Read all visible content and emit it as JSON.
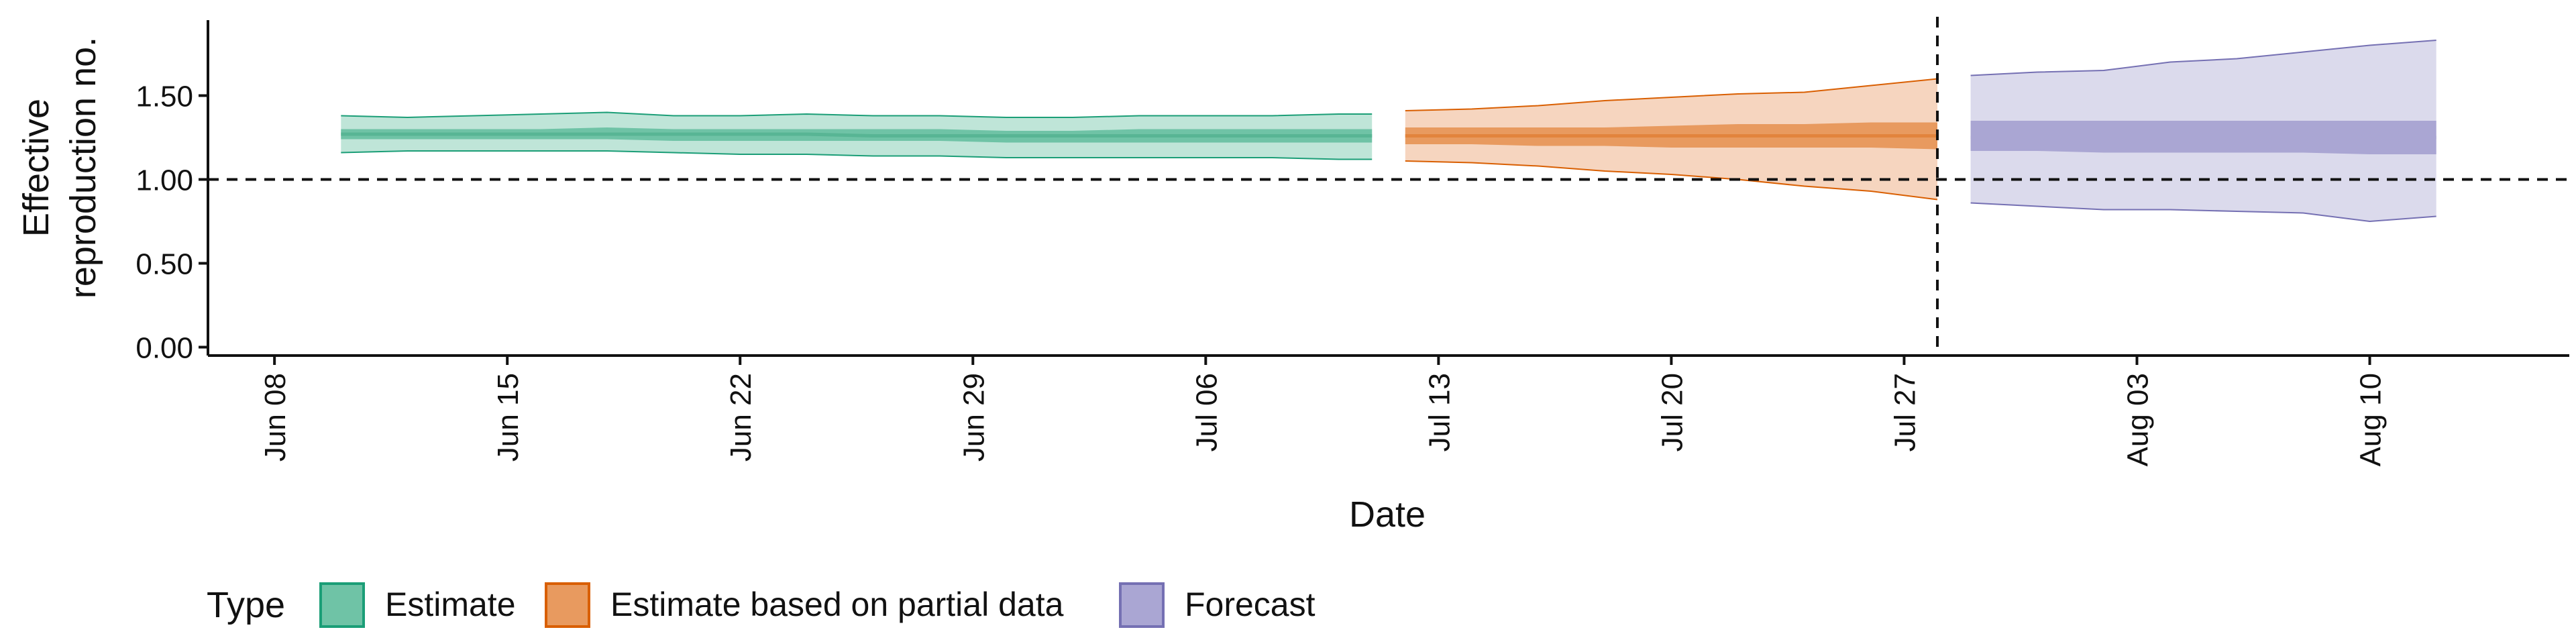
{
  "chart_data": {
    "type": "area",
    "title": "",
    "xlabel": "Date",
    "ylabel_lines": [
      "Effective",
      "reproduction no."
    ],
    "xlim": [
      "2020-06-06",
      "2020-08-16"
    ],
    "ylim": [
      -0.05,
      1.95
    ],
    "yticks": [
      {
        "value": 0.0,
        "label": "0.00"
      },
      {
        "value": 0.5,
        "label": "0.50"
      },
      {
        "value": 1.0,
        "label": "1.00"
      },
      {
        "value": 1.5,
        "label": "1.50"
      }
    ],
    "xticks": [
      {
        "date": "2020-06-08",
        "label": "Jun 08"
      },
      {
        "date": "2020-06-15",
        "label": "Jun 15"
      },
      {
        "date": "2020-06-22",
        "label": "Jun 22"
      },
      {
        "date": "2020-06-29",
        "label": "Jun 29"
      },
      {
        "date": "2020-07-06",
        "label": "Jul 06"
      },
      {
        "date": "2020-07-13",
        "label": "Jul 13"
      },
      {
        "date": "2020-07-20",
        "label": "Jul 20"
      },
      {
        "date": "2020-07-27",
        "label": "Jul 27"
      },
      {
        "date": "2020-08-03",
        "label": "Aug 03"
      },
      {
        "date": "2020-08-10",
        "label": "Aug 10"
      }
    ],
    "reference_lines": {
      "horizontal_y": 1.0,
      "vertical_date": "2020-07-28"
    },
    "legend": {
      "title": "Type",
      "position": "bottom-left"
    },
    "series": [
      {
        "name": "Estimate",
        "fill": "#1b9e77",
        "outer_fill_color": "#bfe5d8",
        "inner_fill_color": "#6fc3a6",
        "median_color": "#58b594",
        "x": [
          "2020-06-10",
          "2020-06-12",
          "2020-06-14",
          "2020-06-16",
          "2020-06-18",
          "2020-06-20",
          "2020-06-22",
          "2020-06-24",
          "2020-06-26",
          "2020-06-28",
          "2020-06-30",
          "2020-07-02",
          "2020-07-04",
          "2020-07-06",
          "2020-07-08",
          "2020-07-10",
          "2020-07-11"
        ],
        "upper_outer": [
          1.38,
          1.37,
          1.38,
          1.39,
          1.4,
          1.38,
          1.38,
          1.39,
          1.38,
          1.38,
          1.37,
          1.37,
          1.38,
          1.38,
          1.38,
          1.39,
          1.39
        ],
        "upper_inner": [
          1.3,
          1.3,
          1.3,
          1.3,
          1.31,
          1.3,
          1.3,
          1.3,
          1.3,
          1.3,
          1.29,
          1.29,
          1.3,
          1.3,
          1.3,
          1.3,
          1.3
        ],
        "median": [
          1.27,
          1.27,
          1.27,
          1.27,
          1.27,
          1.27,
          1.27,
          1.27,
          1.26,
          1.26,
          1.26,
          1.26,
          1.26,
          1.26,
          1.26,
          1.26,
          1.26
        ],
        "lower_inner": [
          1.24,
          1.24,
          1.24,
          1.24,
          1.24,
          1.23,
          1.23,
          1.23,
          1.23,
          1.23,
          1.22,
          1.22,
          1.22,
          1.22,
          1.22,
          1.22,
          1.22
        ],
        "lower_outer": [
          1.16,
          1.17,
          1.17,
          1.17,
          1.17,
          1.16,
          1.15,
          1.15,
          1.14,
          1.14,
          1.13,
          1.13,
          1.13,
          1.13,
          1.13,
          1.12,
          1.12
        ]
      },
      {
        "name": "Estimate based on partial data",
        "fill": "#d95f02",
        "outer_fill_color": "#f6d5bf",
        "inner_fill_color": "#e89a5f",
        "median_color": "#e2843d",
        "x": [
          "2020-07-12",
          "2020-07-14",
          "2020-07-16",
          "2020-07-18",
          "2020-07-20",
          "2020-07-22",
          "2020-07-24",
          "2020-07-26",
          "2020-07-28"
        ],
        "upper_outer": [
          1.41,
          1.42,
          1.44,
          1.47,
          1.49,
          1.51,
          1.52,
          1.56,
          1.6
        ],
        "upper_inner": [
          1.31,
          1.31,
          1.31,
          1.31,
          1.32,
          1.33,
          1.33,
          1.34,
          1.34
        ],
        "median": [
          1.26,
          1.26,
          1.26,
          1.26,
          1.26,
          1.26,
          1.26,
          1.26,
          1.26
        ],
        "lower_inner": [
          1.21,
          1.21,
          1.2,
          1.2,
          1.19,
          1.19,
          1.19,
          1.19,
          1.18
        ],
        "lower_outer": [
          1.11,
          1.1,
          1.08,
          1.05,
          1.03,
          1.0,
          0.96,
          0.93,
          0.88
        ]
      },
      {
        "name": "Forecast",
        "fill": "#7570b3",
        "outer_fill_color": "#dbdaec",
        "inner_fill_color": "#aaa6d3",
        "median_color": "#aaa6d3",
        "x": [
          "2020-07-29",
          "2020-07-31",
          "2020-08-02",
          "2020-08-04",
          "2020-08-06",
          "2020-08-08",
          "2020-08-10",
          "2020-08-12"
        ],
        "upper_outer": [
          1.62,
          1.64,
          1.65,
          1.7,
          1.72,
          1.76,
          1.8,
          1.83
        ],
        "upper_inner": [
          1.35,
          1.35,
          1.35,
          1.35,
          1.35,
          1.35,
          1.35,
          1.35
        ],
        "median": [
          1.25,
          1.25,
          1.25,
          1.25,
          1.25,
          1.25,
          1.25,
          1.25
        ],
        "lower_inner": [
          1.17,
          1.17,
          1.16,
          1.16,
          1.16,
          1.16,
          1.15,
          1.15
        ],
        "lower_outer": [
          0.86,
          0.84,
          0.82,
          0.82,
          0.81,
          0.8,
          0.75,
          0.78
        ]
      }
    ]
  }
}
